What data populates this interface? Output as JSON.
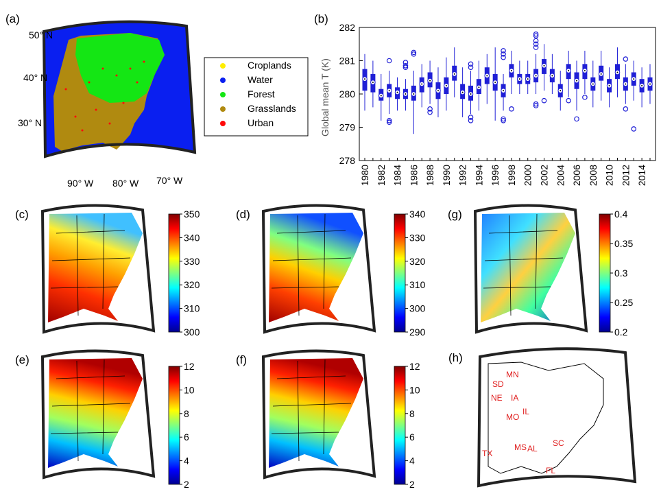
{
  "panels": {
    "a": {
      "label": "(a)",
      "lat_labels": [
        "50° N",
        "40° N",
        "30° N"
      ],
      "lon_labels": [
        "90° W",
        "80° W",
        "70° W"
      ],
      "legend": [
        {
          "label": "Croplands",
          "color": "#ffee00"
        },
        {
          "label": "Water",
          "color": "#0a1ff0"
        },
        {
          "label": "Forest",
          "color": "#14e614"
        },
        {
          "label": "Grasslands",
          "color": "#b08a10"
        },
        {
          "label": "Urban",
          "color": "#ff0a0a"
        }
      ]
    },
    "b": {
      "label": "(b)"
    },
    "c": {
      "label": "(c)",
      "colorbar_ticks": [
        "350",
        "340",
        "330",
        "320",
        "310",
        "300"
      ]
    },
    "d": {
      "label": "(d)",
      "colorbar_ticks": [
        "340",
        "330",
        "320",
        "310",
        "300",
        "290"
      ]
    },
    "g": {
      "label": "(g)",
      "colorbar_ticks": [
        "0.4",
        "0.35",
        "0.3",
        "0.25",
        "0.2"
      ]
    },
    "e": {
      "label": "(e)",
      "colorbar_ticks": [
        "12",
        "10",
        "8",
        "6",
        "4",
        "2"
      ]
    },
    "f": {
      "label": "(f)",
      "colorbar_ticks": [
        "12",
        "10",
        "8",
        "6",
        "4",
        "2"
      ]
    },
    "h": {
      "label": "(h)",
      "states": [
        "MN",
        "SD",
        "NE",
        "IA",
        "IL",
        "MO",
        "TX",
        "MS",
        "AL",
        "SC",
        "FL"
      ]
    }
  },
  "chart_data": {
    "type": "box",
    "ylabel": "Global mean T (K)",
    "ylim": [
      278,
      282
    ],
    "yticks": [
      "278",
      "279",
      "280",
      "281",
      "282"
    ],
    "xtick_labels": [
      "1980",
      "1982",
      "1984",
      "1986",
      "1988",
      "1990",
      "1992",
      "1994",
      "1996",
      "1998",
      "2000",
      "2002",
      "2004",
      "2006",
      "2008",
      "2010",
      "2012",
      "2014"
    ],
    "color": "#1f1fd6",
    "series": [
      {
        "x": 1980,
        "median": 280.45,
        "q1": 280.1,
        "q3": 280.75,
        "lo": 279.5,
        "hi": 281.2,
        "outliers": []
      },
      {
        "x": 1981,
        "median": 280.35,
        "q1": 280.05,
        "q3": 280.6,
        "lo": 279.6,
        "hi": 281.0,
        "outliers": []
      },
      {
        "x": 1982,
        "median": 279.95,
        "q1": 279.8,
        "q3": 280.15,
        "lo": 279.2,
        "hi": 280.6,
        "outliers": []
      },
      {
        "x": 1983,
        "median": 280.1,
        "q1": 279.9,
        "q3": 280.3,
        "lo": 279.4,
        "hi": 280.7,
        "outliers": [
          281.0,
          279.2,
          279.15
        ]
      },
      {
        "x": 1984,
        "median": 280.05,
        "q1": 279.85,
        "q3": 280.2,
        "lo": 279.5,
        "hi": 280.5,
        "outliers": []
      },
      {
        "x": 1985,
        "median": 280.0,
        "q1": 279.85,
        "q3": 280.15,
        "lo": 279.5,
        "hi": 280.45,
        "outliers": [
          280.95,
          280.85,
          280.8
        ]
      },
      {
        "x": 1986,
        "median": 280.0,
        "q1": 279.8,
        "q3": 280.25,
        "lo": 278.8,
        "hi": 280.7,
        "outliers": [
          281.25,
          281.2
        ]
      },
      {
        "x": 1987,
        "median": 280.3,
        "q1": 280.05,
        "q3": 280.5,
        "lo": 279.6,
        "hi": 280.9,
        "outliers": []
      },
      {
        "x": 1988,
        "median": 280.4,
        "q1": 280.2,
        "q3": 280.65,
        "lo": 279.7,
        "hi": 281.0,
        "outliers": [
          279.55,
          279.45
        ]
      },
      {
        "x": 1989,
        "median": 280.1,
        "q1": 279.85,
        "q3": 280.35,
        "lo": 279.3,
        "hi": 280.8,
        "outliers": []
      },
      {
        "x": 1990,
        "median": 280.25,
        "q1": 280.0,
        "q3": 280.5,
        "lo": 279.5,
        "hi": 281.1,
        "outliers": []
      },
      {
        "x": 1991,
        "median": 280.6,
        "q1": 280.4,
        "q3": 280.85,
        "lo": 279.9,
        "hi": 281.4,
        "outliers": []
      },
      {
        "x": 1992,
        "median": 280.05,
        "q1": 279.85,
        "q3": 280.3,
        "lo": 279.3,
        "hi": 280.8,
        "outliers": []
      },
      {
        "x": 1993,
        "median": 280.0,
        "q1": 279.8,
        "q3": 280.25,
        "lo": 279.4,
        "hi": 280.7,
        "outliers": [
          280.9,
          280.8,
          279.3,
          279.2
        ]
      },
      {
        "x": 1994,
        "median": 280.2,
        "q1": 280.0,
        "q3": 280.45,
        "lo": 279.5,
        "hi": 281.0,
        "outliers": []
      },
      {
        "x": 1995,
        "median": 280.55,
        "q1": 280.3,
        "q3": 280.8,
        "lo": 279.7,
        "hi": 281.2,
        "outliers": []
      },
      {
        "x": 1996,
        "median": 280.35,
        "q1": 280.1,
        "q3": 280.6,
        "lo": 279.2,
        "hi": 281.4,
        "outliers": []
      },
      {
        "x": 1997,
        "median": 280.1,
        "q1": 279.9,
        "q3": 280.3,
        "lo": 279.5,
        "hi": 280.6,
        "outliers": [
          281.3,
          281.2,
          281.1,
          279.25,
          279.2
        ]
      },
      {
        "x": 1998,
        "median": 280.7,
        "q1": 280.5,
        "q3": 280.9,
        "lo": 280.0,
        "hi": 281.3,
        "outliers": [
          279.55
        ]
      },
      {
        "x": 1999,
        "median": 280.45,
        "q1": 280.3,
        "q3": 280.6,
        "lo": 280.0,
        "hi": 281.0,
        "outliers": []
      },
      {
        "x": 2000,
        "median": 280.45,
        "q1": 280.3,
        "q3": 280.6,
        "lo": 280.0,
        "hi": 281.0,
        "outliers": []
      },
      {
        "x": 2001,
        "median": 280.55,
        "q1": 280.35,
        "q3": 280.75,
        "lo": 280.0,
        "hi": 281.2,
        "outliers": [
          281.8,
          281.75,
          281.6,
          281.5,
          281.4,
          279.7,
          279.65
        ]
      },
      {
        "x": 2002,
        "median": 280.85,
        "q1": 280.6,
        "q3": 281.05,
        "lo": 280.1,
        "hi": 281.5,
        "outliers": [
          279.8
        ]
      },
      {
        "x": 2003,
        "median": 280.55,
        "q1": 280.35,
        "q3": 280.75,
        "lo": 280.0,
        "hi": 281.2,
        "outliers": []
      },
      {
        "x": 2004,
        "median": 280.1,
        "q1": 279.9,
        "q3": 280.3,
        "lo": 279.5,
        "hi": 280.7,
        "outliers": []
      },
      {
        "x": 2005,
        "median": 280.7,
        "q1": 280.45,
        "q3": 280.9,
        "lo": 279.9,
        "hi": 281.3,
        "outliers": [
          279.8
        ]
      },
      {
        "x": 2006,
        "median": 280.4,
        "q1": 280.15,
        "q3": 280.65,
        "lo": 279.5,
        "hi": 281.0,
        "outliers": [
          279.25
        ]
      },
      {
        "x": 2007,
        "median": 280.7,
        "q1": 280.45,
        "q3": 280.9,
        "lo": 280.0,
        "hi": 281.3,
        "outliers": [
          279.9
        ]
      },
      {
        "x": 2008,
        "median": 280.3,
        "q1": 280.1,
        "q3": 280.5,
        "lo": 279.6,
        "hi": 281.0,
        "outliers": []
      },
      {
        "x": 2009,
        "median": 280.6,
        "q1": 280.4,
        "q3": 280.85,
        "lo": 279.8,
        "hi": 281.3,
        "outliers": []
      },
      {
        "x": 2010,
        "median": 280.25,
        "q1": 280.05,
        "q3": 280.45,
        "lo": 279.6,
        "hi": 280.8,
        "outliers": []
      },
      {
        "x": 2011,
        "median": 280.65,
        "q1": 280.45,
        "q3": 280.9,
        "lo": 279.9,
        "hi": 281.4,
        "outliers": []
      },
      {
        "x": 2012,
        "median": 280.3,
        "q1": 280.1,
        "q3": 280.5,
        "lo": 279.7,
        "hi": 280.9,
        "outliers": [
          281.05,
          279.55
        ]
      },
      {
        "x": 2013,
        "median": 280.45,
        "q1": 280.25,
        "q3": 280.65,
        "lo": 279.8,
        "hi": 281.0,
        "outliers": [
          278.95
        ]
      },
      {
        "x": 2014,
        "median": 280.25,
        "q1": 280.05,
        "q3": 280.45,
        "lo": 279.6,
        "hi": 280.8,
        "outliers": []
      },
      {
        "x": 2015,
        "median": 280.3,
        "q1": 280.1,
        "q3": 280.5,
        "lo": 279.7,
        "hi": 280.9,
        "outliers": []
      }
    ]
  },
  "colorbars": {
    "jet": [
      "#00008f",
      "#0000ff",
      "#0080ff",
      "#00ffff",
      "#80ff80",
      "#ffff00",
      "#ff8000",
      "#ff0000",
      "#800000"
    ]
  }
}
